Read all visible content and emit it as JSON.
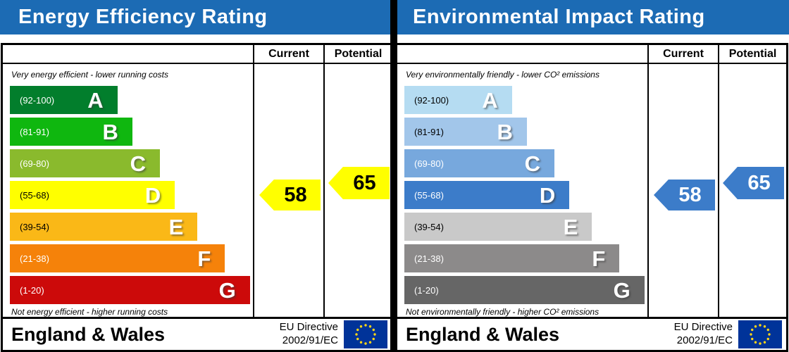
{
  "panels": [
    {
      "title": "Energy Efficiency Rating",
      "columns": {
        "current": "Current",
        "potential": "Potential"
      },
      "top_caption": "Very energy efficient - lower running costs",
      "bottom_caption": "Not energy efficient - higher running costs",
      "bands": [
        {
          "letter": "A",
          "range_label": "(92-100)",
          "color": "#027e2c",
          "range_color": "#ffffff",
          "width_pct": 43
        },
        {
          "letter": "B",
          "range_label": "(81-91)",
          "color": "#0fb70f",
          "range_color": "#ffffff",
          "width_pct": 49
        },
        {
          "letter": "C",
          "range_label": "(69-80)",
          "color": "#8aba2d",
          "range_color": "#ffffff",
          "width_pct": 60
        },
        {
          "letter": "D",
          "range_label": "(55-68)",
          "color": "#ffff00",
          "range_color": "#000000",
          "width_pct": 66
        },
        {
          "letter": "E",
          "range_label": "(39-54)",
          "color": "#fab817",
          "range_color": "#000000",
          "width_pct": 75
        },
        {
          "letter": "F",
          "range_label": "(21-38)",
          "color": "#f5820a",
          "range_color": "#ffffff",
          "width_pct": 86
        },
        {
          "letter": "G",
          "range_label": "(1-20)",
          "color": "#cc0a0a",
          "range_color": "#ffffff",
          "width_pct": 96
        }
      ],
      "current": {
        "value": "58",
        "color": "#ffff00",
        "text_color": "#000000"
      },
      "potential": {
        "value": "65",
        "color": "#ffff00",
        "text_color": "#000000"
      },
      "footer": {
        "region": "England & Wales",
        "directive_line1": "EU Directive",
        "directive_line2": "2002/91/EC",
        "flag_icon": "eu-flag",
        "flag_bg": "#003399",
        "flag_star_color": "#ffd617"
      }
    },
    {
      "title": "Environmental Impact Rating",
      "columns": {
        "current": "Current",
        "potential": "Potential"
      },
      "top_caption": "Very environmentally friendly - lower CO² emissions",
      "bottom_caption": "Not environmentally friendly - higher CO² emissions",
      "bands": [
        {
          "letter": "A",
          "range_label": "(92-100)",
          "color": "#b5dcf2",
          "range_color": "#000000",
          "width_pct": 43
        },
        {
          "letter": "B",
          "range_label": "(81-91)",
          "color": "#a2c6ea",
          "range_color": "#000000",
          "width_pct": 49
        },
        {
          "letter": "C",
          "range_label": "(69-80)",
          "color": "#77a8dd",
          "range_color": "#ffffff",
          "width_pct": 60
        },
        {
          "letter": "D",
          "range_label": "(55-68)",
          "color": "#3c7cc9",
          "range_color": "#ffffff",
          "width_pct": 66
        },
        {
          "letter": "E",
          "range_label": "(39-54)",
          "color": "#c9c9c9",
          "range_color": "#000000",
          "width_pct": 75
        },
        {
          "letter": "F",
          "range_label": "(21-38)",
          "color": "#8c8a8a",
          "range_color": "#ffffff",
          "width_pct": 86
        },
        {
          "letter": "G",
          "range_label": "(1-20)",
          "color": "#666666",
          "range_color": "#ffffff",
          "width_pct": 96
        }
      ],
      "current": {
        "value": "58",
        "color": "#3c7cc9",
        "text_color": "#ffffff"
      },
      "potential": {
        "value": "65",
        "color": "#3c7cc9",
        "text_color": "#ffffff"
      },
      "footer": {
        "region": "England & Wales",
        "directive_line1": "EU Directive",
        "directive_line2": "2002/91/EC",
        "flag_icon": "eu-flag",
        "flag_bg": "#003399",
        "flag_star_color": "#ffd617"
      }
    }
  ],
  "chart_data": [
    {
      "type": "bar",
      "subtype": "epc-rating-scale",
      "title": "Energy Efficiency Rating",
      "categories": [
        "A",
        "B",
        "C",
        "D",
        "E",
        "F",
        "G"
      ],
      "band_ranges": [
        [
          92,
          100
        ],
        [
          81,
          91
        ],
        [
          69,
          80
        ],
        [
          55,
          68
        ],
        [
          39,
          54
        ],
        [
          21,
          38
        ],
        [
          1,
          20
        ]
      ],
      "band_colors": [
        "#027e2c",
        "#0fb70f",
        "#8aba2d",
        "#ffff00",
        "#fab817",
        "#f5820a",
        "#cc0a0a"
      ],
      "relative_bar_widths_pct": [
        43,
        49,
        60,
        66,
        75,
        86,
        96
      ],
      "current": 58,
      "potential": 65,
      "current_band": "D",
      "potential_band": "D",
      "top_caption": "Very energy efficient - lower running costs",
      "bottom_caption": "Not energy efficient - higher running costs",
      "region": "England & Wales",
      "directive": "EU Directive 2002/91/EC"
    },
    {
      "type": "bar",
      "subtype": "epc-rating-scale",
      "title": "Environmental Impact Rating",
      "categories": [
        "A",
        "B",
        "C",
        "D",
        "E",
        "F",
        "G"
      ],
      "band_ranges": [
        [
          92,
          100
        ],
        [
          81,
          91
        ],
        [
          69,
          80
        ],
        [
          55,
          68
        ],
        [
          39,
          54
        ],
        [
          21,
          38
        ],
        [
          1,
          20
        ]
      ],
      "band_colors": [
        "#b5dcf2",
        "#a2c6ea",
        "#77a8dd",
        "#3c7cc9",
        "#c9c9c9",
        "#8c8a8a",
        "#666666"
      ],
      "relative_bar_widths_pct": [
        43,
        49,
        60,
        66,
        75,
        86,
        96
      ],
      "current": 58,
      "potential": 65,
      "current_band": "D",
      "potential_band": "D",
      "top_caption": "Very environmentally friendly - lower CO² emissions",
      "bottom_caption": "Not environmentally friendly - higher CO² emissions",
      "region": "England & Wales",
      "directive": "EU Directive 2002/91/EC"
    }
  ],
  "theme": {
    "banner_color": "#1c6bb4",
    "banner_text_color": "#ffffff",
    "border_color": "#000000"
  }
}
